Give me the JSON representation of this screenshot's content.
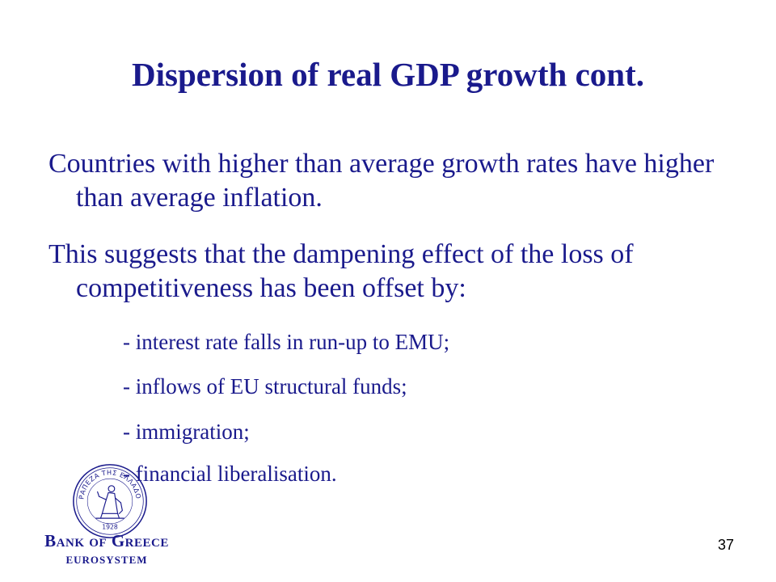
{
  "slide": {
    "title": "Dispersion of real GDP growth cont.",
    "paragraphs": [
      "Countries with higher than average growth rates have higher than average inflation.",
      "This suggests that the dampening effect of the loss of competitiveness has been offset by:"
    ],
    "sub_items": [
      "- interest rate falls in run-up to EMU;",
      "- inflows of EU structural funds;",
      "- immigration;",
      "- financial liberalisation."
    ],
    "page_number": "37"
  },
  "branding": {
    "name": "Bank of Greece",
    "subtitle": "EUROSYSTEM",
    "seal_text_top": "ΤΡΑΠΕΖΑ ΤΗΣ ΕΛΛΑΔΟΣ",
    "seal_year": "1928",
    "seal_icon": "bank-seal-icon",
    "color": "#1a1a8c"
  }
}
